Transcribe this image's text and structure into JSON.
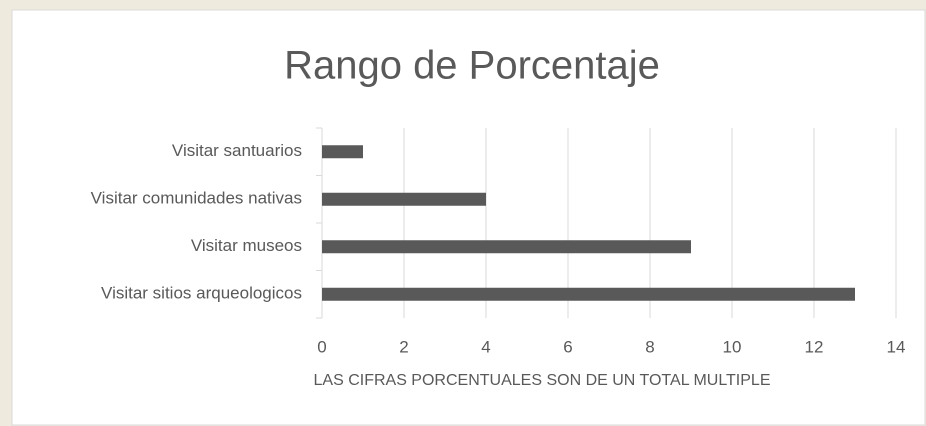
{
  "chart_data": {
    "type": "bar",
    "orientation": "horizontal",
    "title": "Rango de Porcentaje",
    "x_label": "LAS CIFRAS PORCENTUALES SON DE UN TOTAL MULTIPLE",
    "categories": [
      "Visitar santuarios",
      "Visitar comunidades nativas",
      "Visitar museos",
      "Visitar sitios arqueologicos"
    ],
    "values": [
      1,
      4,
      9,
      13
    ],
    "color": "#595959",
    "xlim": [
      0,
      14
    ],
    "xticks": [
      0,
      2,
      4,
      6,
      8,
      10,
      12,
      14
    ],
    "grid": true
  }
}
